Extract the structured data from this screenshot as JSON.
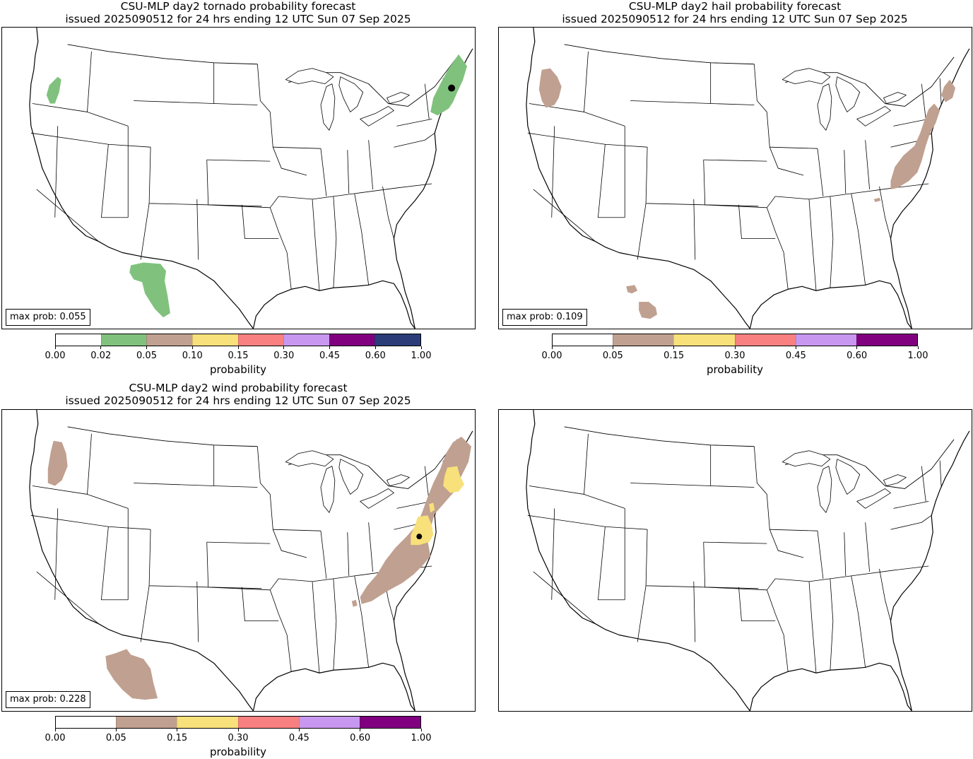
{
  "panels": {
    "tornado": {
      "title_line1": "CSU-MLP day2 tornado probability forecast",
      "title_line2": "issued 2025090512 for 24 hrs ending 12 UTC Sun 07 Sep 2025",
      "max_prob": "max prob: 0.055",
      "colorbar": {
        "ticks": [
          "0.00",
          "0.02",
          "0.05",
          "0.10",
          "0.15",
          "0.30",
          "0.45",
          "0.60",
          "1.00"
        ],
        "colors": [
          "#ffffff",
          "#80c27d",
          "#c0a090",
          "#f8e07a",
          "#f88080",
          "#c898f0",
          "#800080",
          "#2c3c78"
        ],
        "label": "probability"
      }
    },
    "hail": {
      "title_line1": "CSU-MLP day2 hail probability forecast",
      "title_line2": "issued 2025090512 for 24 hrs ending 12 UTC Sun 07 Sep 2025",
      "max_prob": "max prob: 0.109",
      "colorbar": {
        "ticks": [
          "0.00",
          "0.05",
          "0.15",
          "0.30",
          "0.45",
          "0.60",
          "1.00"
        ],
        "colors": [
          "#ffffff",
          "#c0a090",
          "#f8e07a",
          "#f88080",
          "#c898f0",
          "#800080"
        ],
        "label": "probability"
      }
    },
    "wind": {
      "title_line1": "CSU-MLP day2 wind probability forecast",
      "title_line2": "issued 2025090512 for 24 hrs ending 12 UTC Sun 07 Sep 2025",
      "max_prob": "max prob: 0.228",
      "colorbar": {
        "ticks": [
          "0.00",
          "0.05",
          "0.15",
          "0.30",
          "0.45",
          "0.60",
          "1.00"
        ],
        "colors": [
          "#ffffff",
          "#c0a090",
          "#f8e07a",
          "#f88080",
          "#c898f0",
          "#800080"
        ],
        "label": "probability"
      }
    }
  }
}
